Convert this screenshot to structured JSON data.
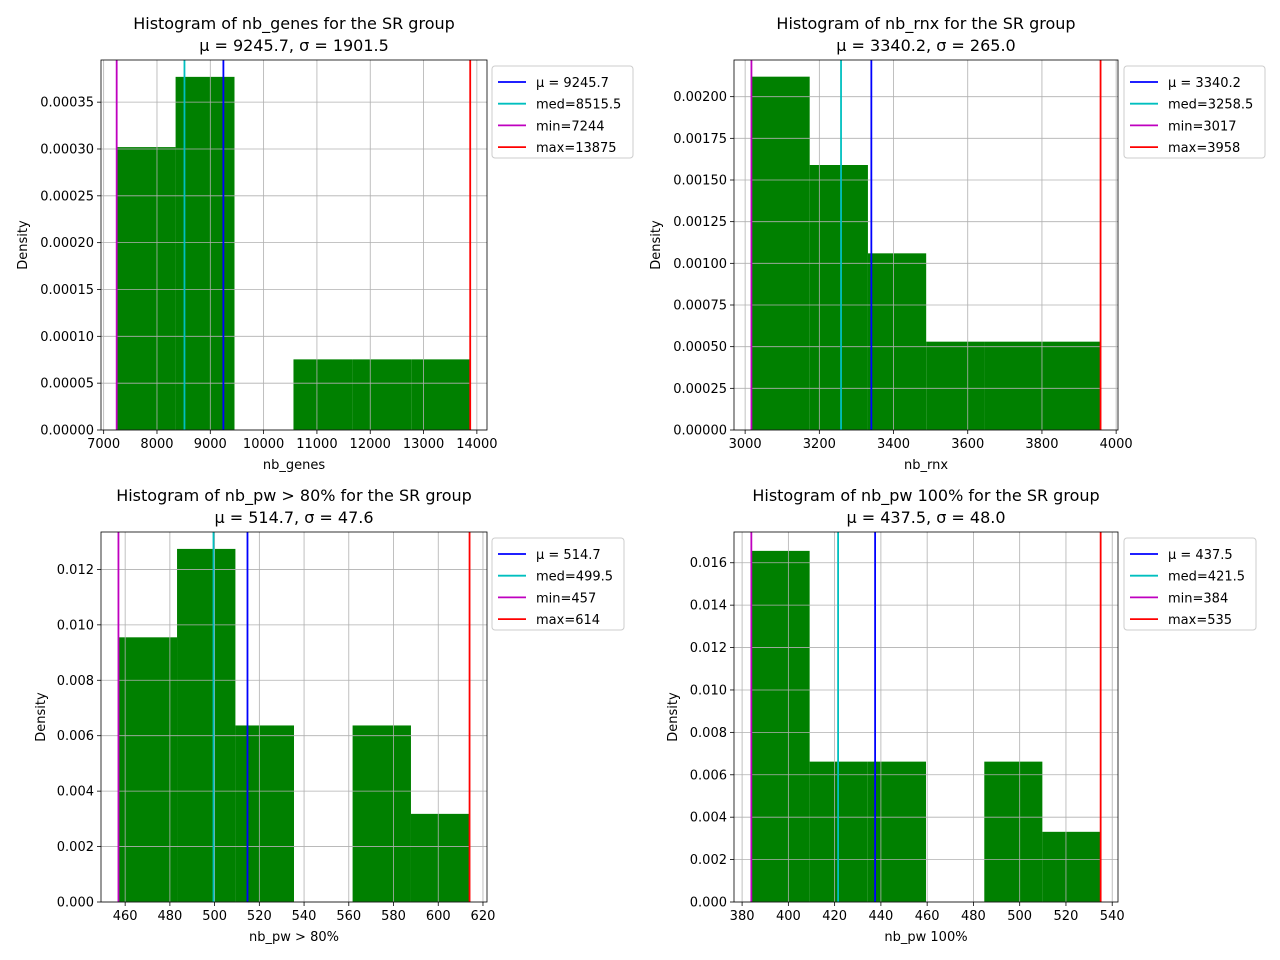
{
  "colors": {
    "bars": "#008000",
    "mean": "#0000ff",
    "median": "#00bfbf",
    "min": "#bf00bf",
    "max": "#ff0000",
    "grid": "#b0b0b0"
  },
  "chart_data": [
    {
      "type": "bar",
      "title": "Histogram of nb_genes for the SR group",
      "subtitle": "μ = 9245.7,  σ = 1901.5",
      "xlabel": "nb_genes",
      "ylabel": "Density",
      "xlim": [
        6950,
        14190
      ],
      "ylim": [
        0,
        0.000395
      ],
      "xticks": [
        7000,
        8000,
        9000,
        10000,
        11000,
        12000,
        13000,
        14000
      ],
      "xtick_labels": [
        "7000",
        "8000",
        "9000",
        "10000",
        "11000",
        "12000",
        "13000",
        "14000"
      ],
      "yticks": [
        0,
        5e-05,
        0.0001,
        0.00015,
        0.0002,
        0.00025,
        0.0003,
        0.00035
      ],
      "ytick_labels": [
        "0.00000",
        "0.00005",
        "0.00010",
        "0.00015",
        "0.00020",
        "0.00025",
        "0.00030",
        "0.00035"
      ],
      "bins": [
        {
          "x0": 7244,
          "x1": 8349,
          "density": 0.000302
        },
        {
          "x0": 8349,
          "x1": 9454,
          "density": 0.000377
        },
        {
          "x0": 9454,
          "x1": 10560,
          "density": 0
        },
        {
          "x0": 10560,
          "x1": 11665,
          "density": 7.54e-05
        },
        {
          "x0": 11665,
          "x1": 12770,
          "density": 7.54e-05
        },
        {
          "x0": 12770,
          "x1": 13875,
          "density": 7.54e-05
        }
      ],
      "lines": {
        "mean": 9245.7,
        "median": 8515.5,
        "min": 7244,
        "max": 13875
      },
      "legend": [
        "μ = 9245.7",
        "med=8515.5",
        "min=7244",
        "max=13875"
      ],
      "legend_position": "outside-right-top",
      "grid": true
    },
    {
      "type": "bar",
      "title": "Histogram of nb_rnx for the SR group",
      "subtitle": "μ = 3340.2,  σ = 265.0",
      "xlabel": "nb_rnx",
      "ylabel": "Density",
      "xlim": [
        2970,
        4005
      ],
      "ylim": [
        0,
        0.00222
      ],
      "xticks": [
        3000,
        3200,
        3400,
        3600,
        3800,
        4000
      ],
      "xtick_labels": [
        "3000",
        "3200",
        "3400",
        "3600",
        "3800",
        "4000"
      ],
      "yticks": [
        0,
        0.00025,
        0.0005,
        0.00075,
        0.001,
        0.00125,
        0.0015,
        0.00175,
        0.002
      ],
      "ytick_labels": [
        "0.00000",
        "0.00025",
        "0.00050",
        "0.00075",
        "0.00100",
        "0.00125",
        "0.00150",
        "0.00175",
        "0.00200"
      ],
      "bins": [
        {
          "x0": 3017,
          "x1": 3174,
          "density": 0.00212
        },
        {
          "x0": 3174,
          "x1": 3331,
          "density": 0.00159
        },
        {
          "x0": 3331,
          "x1": 3488,
          "density": 0.00106
        },
        {
          "x0": 3488,
          "x1": 3644,
          "density": 0.00053
        },
        {
          "x0": 3644,
          "x1": 3801,
          "density": 0.00053
        },
        {
          "x0": 3801,
          "x1": 3958,
          "density": 0.00053
        }
      ],
      "lines": {
        "mean": 3340.2,
        "median": 3258.5,
        "min": 3017,
        "max": 3958
      },
      "legend": [
        "μ = 3340.2",
        "med=3258.5",
        "min=3017",
        "max=3958"
      ],
      "legend_position": "outside-right-top",
      "grid": true
    },
    {
      "type": "bar",
      "title": "Histogram of nb_pw > 80% for the SR group",
      "subtitle": "μ = 514.7,  σ = 47.6",
      "xlabel": "nb_pw > 80%",
      "ylabel": "Density",
      "xlim": [
        449.2,
        621.8
      ],
      "ylim": [
        0,
        0.01335
      ],
      "xticks": [
        460,
        480,
        500,
        520,
        540,
        560,
        580,
        600,
        620
      ],
      "xtick_labels": [
        "460",
        "480",
        "500",
        "520",
        "540",
        "560",
        "580",
        "600",
        "620"
      ],
      "yticks": [
        0,
        0.002,
        0.004,
        0.006,
        0.008,
        0.01,
        0.012
      ],
      "ytick_labels": [
        "0.000",
        "0.002",
        "0.004",
        "0.006",
        "0.008",
        "0.010",
        "0.012"
      ],
      "bins": [
        {
          "x0": 457,
          "x1": 483.2,
          "density": 0.00955
        },
        {
          "x0": 483.2,
          "x1": 509.3,
          "density": 0.01274
        },
        {
          "x0": 509.3,
          "x1": 535.5,
          "density": 0.00637
        },
        {
          "x0": 535.5,
          "x1": 561.7,
          "density": 0
        },
        {
          "x0": 561.7,
          "x1": 587.8,
          "density": 0.00637
        },
        {
          "x0": 587.8,
          "x1": 614,
          "density": 0.00318
        }
      ],
      "lines": {
        "mean": 514.7,
        "median": 499.5,
        "min": 457,
        "max": 614
      },
      "legend": [
        "μ = 514.7",
        "med=499.5",
        "min=457",
        "max=614"
      ],
      "legend_position": "outside-right-top",
      "grid": true
    },
    {
      "type": "bar",
      "title": "Histogram of nb_pw 100% for the SR group",
      "subtitle": "μ = 437.5,  σ = 48.0",
      "xlabel": "nb_pw 100%",
      "ylabel": "Density",
      "xlim": [
        376.5,
        542.5
      ],
      "ylim": [
        0,
        0.01745
      ],
      "xticks": [
        380,
        400,
        420,
        440,
        460,
        480,
        500,
        520,
        540
      ],
      "xtick_labels": [
        "380",
        "400",
        "420",
        "440",
        "460",
        "480",
        "500",
        "520",
        "540"
      ],
      "yticks": [
        0,
        0.002,
        0.004,
        0.006,
        0.008,
        0.01,
        0.012,
        0.014,
        0.016
      ],
      "ytick_labels": [
        "0.000",
        "0.002",
        "0.004",
        "0.006",
        "0.008",
        "0.010",
        "0.012",
        "0.014",
        "0.016"
      ],
      "bins": [
        {
          "x0": 384,
          "x1": 409.2,
          "density": 0.01656
        },
        {
          "x0": 409.2,
          "x1": 434.3,
          "density": 0.00662
        },
        {
          "x0": 434.3,
          "x1": 459.5,
          "density": 0.00662
        },
        {
          "x0": 459.5,
          "x1": 484.7,
          "density": 0
        },
        {
          "x0": 484.7,
          "x1": 509.8,
          "density": 0.00662
        },
        {
          "x0": 509.8,
          "x1": 535,
          "density": 0.00331
        }
      ],
      "lines": {
        "mean": 437.5,
        "median": 421.5,
        "min": 384,
        "max": 535
      },
      "legend": [
        "μ = 437.5",
        "med=421.5",
        "min=384",
        "max=535"
      ],
      "legend_position": "outside-right-top",
      "grid": true
    }
  ]
}
